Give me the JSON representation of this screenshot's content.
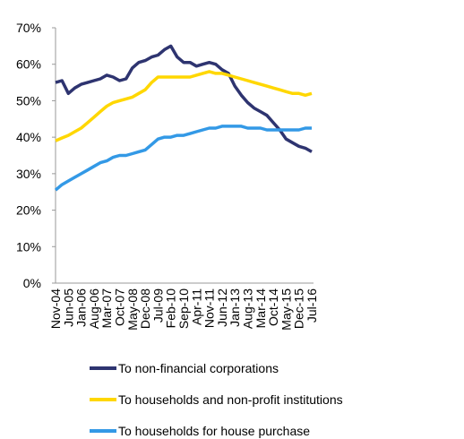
{
  "chart_data": {
    "type": "line",
    "categories": [
      "Nov-04",
      null,
      "Jun-05",
      null,
      "Jan-06",
      null,
      "Aug-06",
      null,
      "Mar-07",
      null,
      "Oct-07",
      null,
      "May-08",
      null,
      "Dec-08",
      null,
      "Jul-09",
      null,
      "Feb-10",
      null,
      "Sep-10",
      null,
      "Apr-11",
      null,
      "Nov-11",
      null,
      "Jun-12",
      null,
      "Jan-13",
      null,
      "Aug-13",
      null,
      "Mar-14",
      null,
      "Oct-14",
      null,
      "May-15",
      null,
      "Dec-15",
      null,
      "Jul-16"
    ],
    "series": [
      {
        "name": "To non-financial corporations",
        "color": "#2e3470",
        "values": [
          55,
          55.5,
          52,
          53.5,
          54.5,
          55,
          55.5,
          56,
          57,
          56.5,
          55.5,
          56,
          59,
          60.5,
          61,
          62,
          62.5,
          64,
          65,
          62,
          60.5,
          60.5,
          59.5,
          60,
          60.5,
          60,
          58.5,
          57.5,
          54,
          51.5,
          49.5,
          48,
          47,
          46,
          44,
          42,
          39.5,
          38.5,
          37.5,
          37,
          36
        ]
      },
      {
        "name": "To households and non-profit institutions",
        "color": "#ffd700",
        "values": [
          39,
          39.8,
          40.5,
          41.5,
          42.5,
          44,
          45.5,
          47,
          48.5,
          49.5,
          50,
          50.5,
          51,
          52,
          53,
          55,
          56.5,
          56.5,
          56.5,
          56.5,
          56.5,
          56.5,
          57,
          57.5,
          58,
          57.5,
          57.5,
          57,
          56.5,
          56,
          55.5,
          55,
          54.5,
          54,
          53.5,
          53,
          52.5,
          52,
          52,
          51.5,
          52
        ]
      },
      {
        "name": "To households for house purchase",
        "color": "#3399e6",
        "values": [
          25.5,
          27,
          28,
          29,
          30,
          31,
          32,
          33,
          33.5,
          34.5,
          35,
          35,
          35.5,
          36,
          36.5,
          38,
          39.5,
          40,
          40,
          40.5,
          40.5,
          41,
          41.5,
          42,
          42.5,
          42.5,
          43,
          43,
          43,
          43,
          42.5,
          42.5,
          42.5,
          42,
          42,
          42,
          42,
          42,
          42,
          42.5,
          42.5
        ]
      }
    ],
    "ylim": [
      0,
      70
    ],
    "yticks": [
      {
        "value": 0,
        "label": "0%"
      },
      {
        "value": 10,
        "label": "10%"
      },
      {
        "value": 20,
        "label": "20%"
      },
      {
        "value": 30,
        "label": "30%"
      },
      {
        "value": 40,
        "label": "40%"
      },
      {
        "value": 50,
        "label": "50%"
      },
      {
        "value": 60,
        "label": "60%"
      },
      {
        "value": 70,
        "label": "70%"
      }
    ],
    "grid": false
  }
}
